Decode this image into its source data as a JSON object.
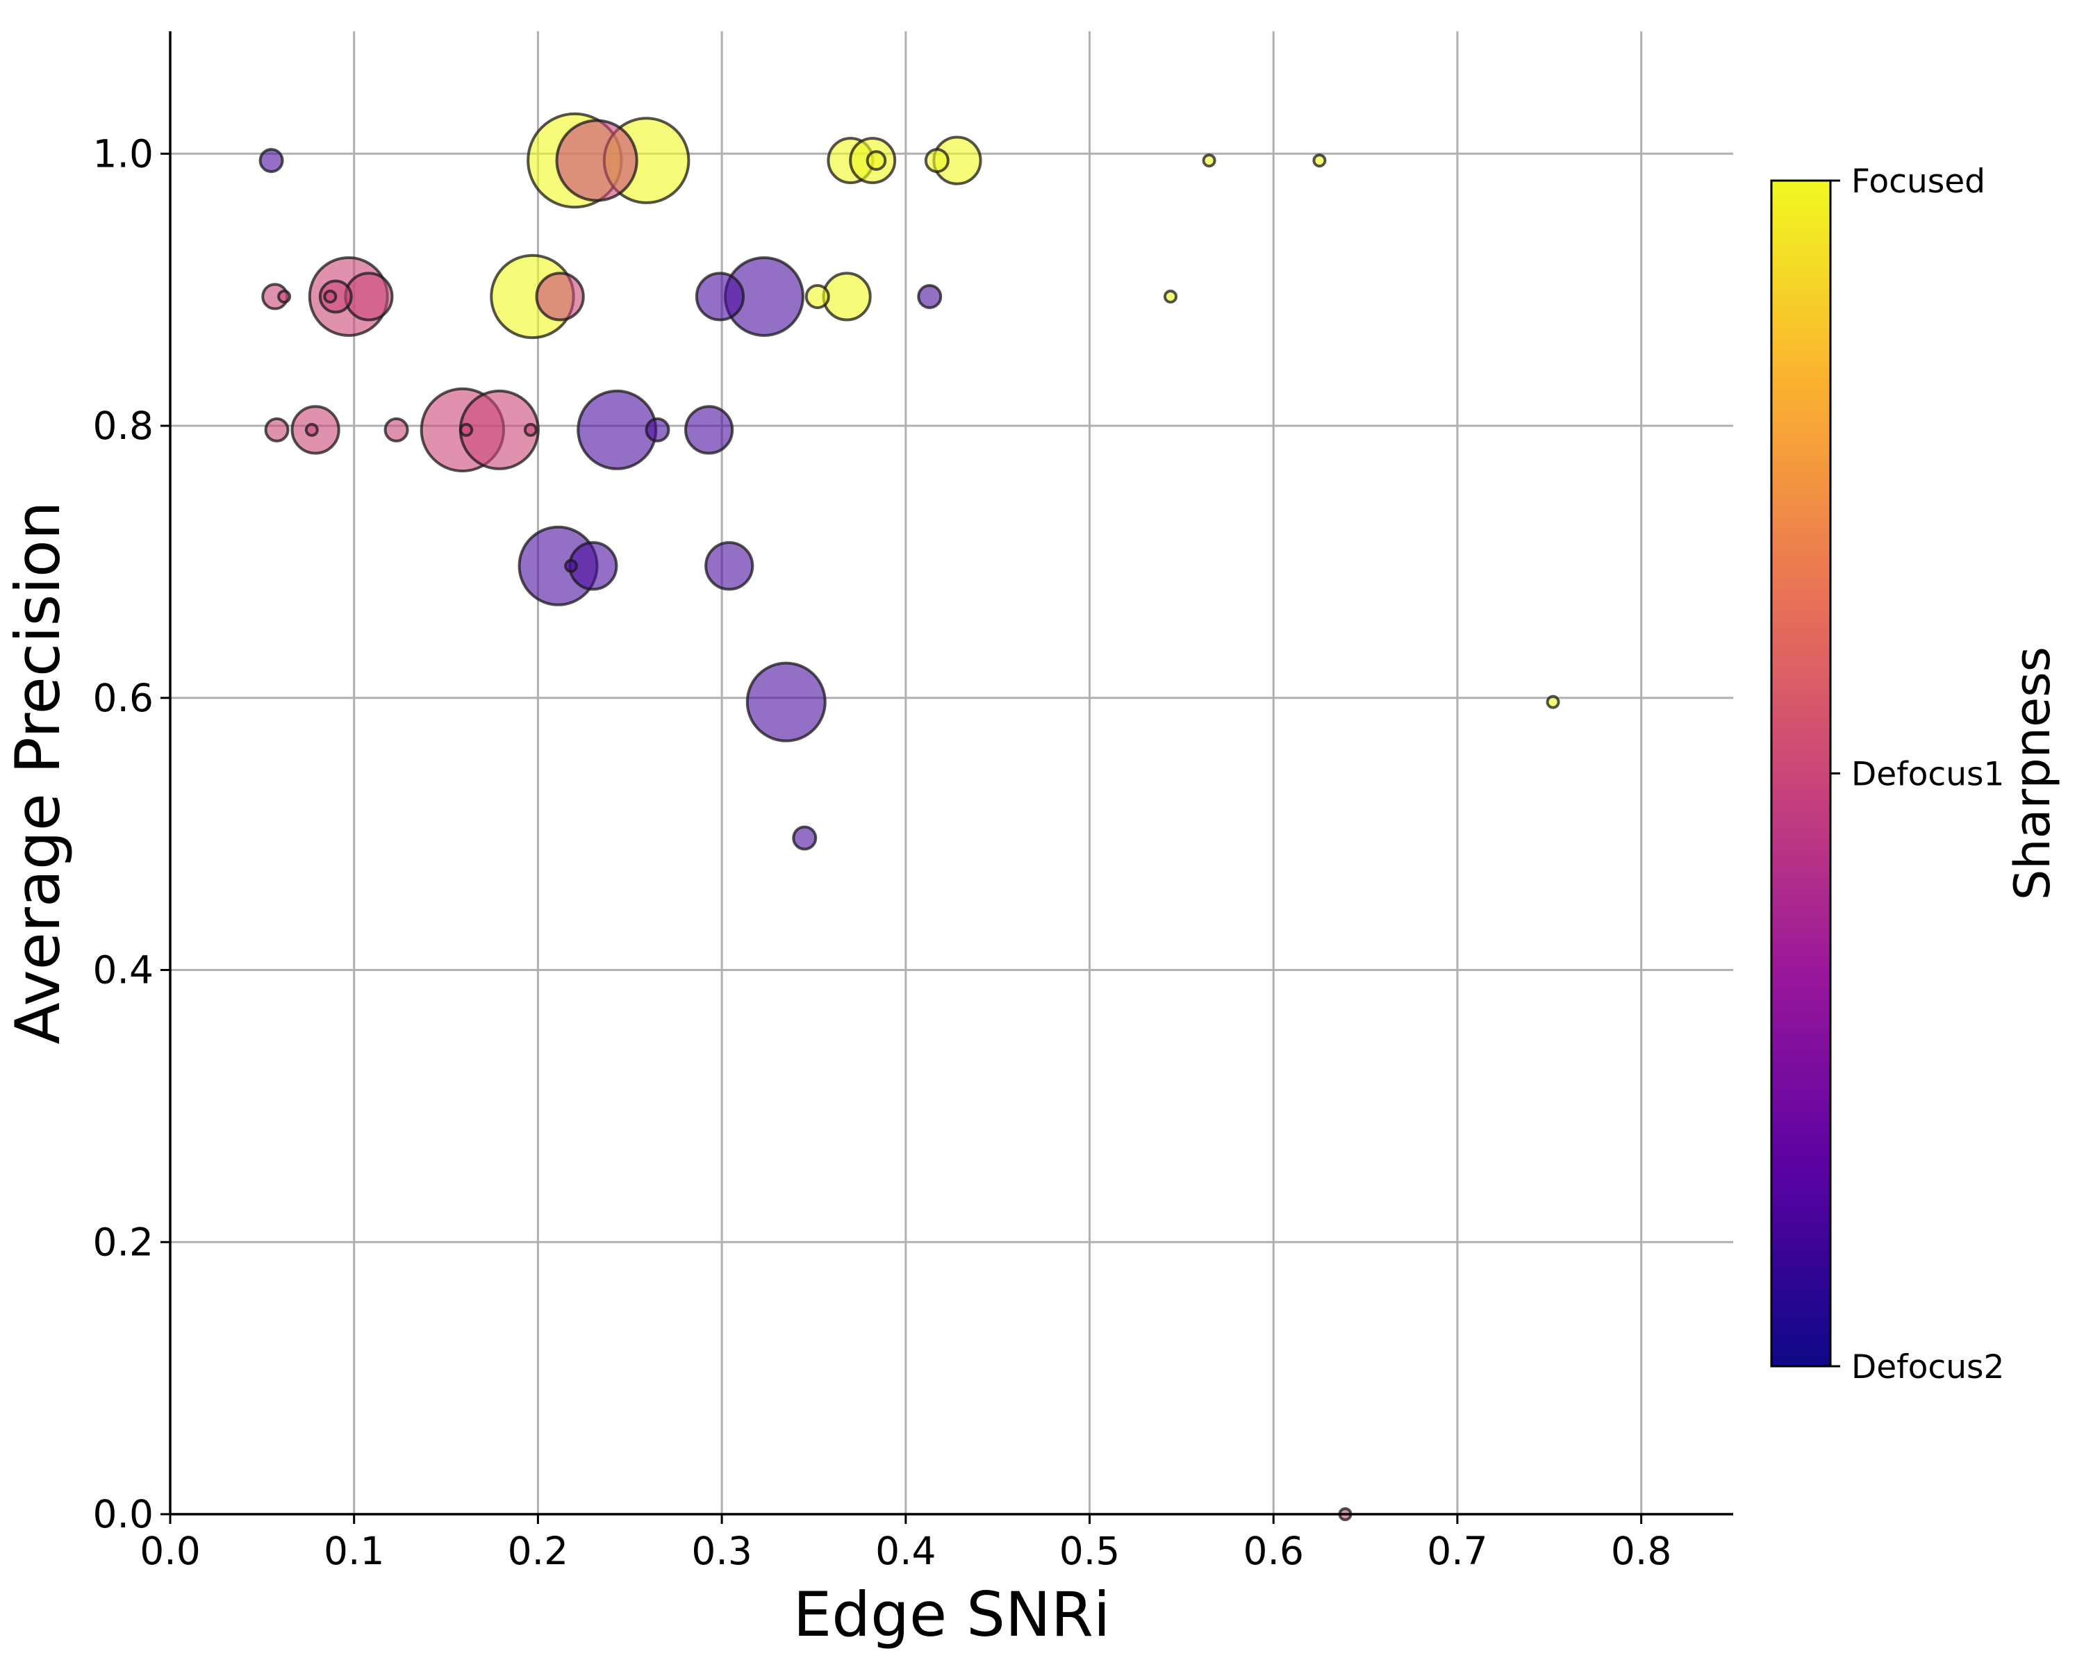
{
  "chart_data": {
    "type": "scatter",
    "xlabel": "Edge SNRi",
    "ylabel": "Average Precision",
    "xlim": [
      0.0,
      0.85
    ],
    "ylim": [
      0.0,
      1.09
    ],
    "x_ticks": [
      "0.0",
      "0.1",
      "0.2",
      "0.3",
      "0.4",
      "0.5",
      "0.6",
      "0.7",
      "0.8"
    ],
    "y_ticks": [
      "0.0",
      "0.2",
      "0.4",
      "0.6",
      "0.8",
      "1.0"
    ],
    "grid": true,
    "marker_alpha": 0.6,
    "colormap": "plasma",
    "colorbar": {
      "title": "Sharpness",
      "tick_labels": [
        "Defocus2",
        "Defocus1",
        "Focused"
      ],
      "stops": [
        "#0d0887",
        "#5b02a3",
        "#9a179b",
        "#cb4678",
        "#eb7852",
        "#fbb32f",
        "#f0f921"
      ]
    },
    "categories": {
      "Focused": {
        "color": "#f0f921"
      },
      "Defocus1": {
        "color": "#cc4778"
      },
      "Defocus2": {
        "color": "#4b0fa0"
      }
    },
    "series": [
      {
        "category": "Focused",
        "points": [
          {
            "x": 0.22,
            "y": 0.995,
            "s": 42
          },
          {
            "x": 0.259,
            "y": 0.995,
            "s": 38
          },
          {
            "x": 0.197,
            "y": 0.895,
            "s": 37
          },
          {
            "x": 0.37,
            "y": 0.995,
            "s": 20
          },
          {
            "x": 0.382,
            "y": 0.995,
            "s": 20
          },
          {
            "x": 0.428,
            "y": 0.995,
            "s": 21
          },
          {
            "x": 0.368,
            "y": 0.895,
            "s": 21
          },
          {
            "x": 0.352,
            "y": 0.895,
            "s": 10
          },
          {
            "x": 0.417,
            "y": 0.995,
            "s": 10
          },
          {
            "x": 0.384,
            "y": 0.995,
            "s": 8
          },
          {
            "x": 0.544,
            "y": 0.895,
            "s": 5
          },
          {
            "x": 0.565,
            "y": 0.995,
            "s": 5
          },
          {
            "x": 0.625,
            "y": 0.995,
            "s": 5
          },
          {
            "x": 0.752,
            "y": 0.597,
            "s": 5
          }
        ]
      },
      {
        "category": "Defocus1",
        "points": [
          {
            "x": 0.097,
            "y": 0.895,
            "s": 35
          },
          {
            "x": 0.108,
            "y": 0.895,
            "s": 21
          },
          {
            "x": 0.09,
            "y": 0.895,
            "s": 14
          },
          {
            "x": 0.057,
            "y": 0.895,
            "s": 11
          },
          {
            "x": 0.062,
            "y": 0.895,
            "s": 5
          },
          {
            "x": 0.087,
            "y": 0.895,
            "s": 5
          },
          {
            "x": 0.159,
            "y": 0.797,
            "s": 37
          },
          {
            "x": 0.179,
            "y": 0.797,
            "s": 35
          },
          {
            "x": 0.079,
            "y": 0.797,
            "s": 21
          },
          {
            "x": 0.058,
            "y": 0.797,
            "s": 10
          },
          {
            "x": 0.123,
            "y": 0.797,
            "s": 10
          },
          {
            "x": 0.077,
            "y": 0.797,
            "s": 5
          },
          {
            "x": 0.161,
            "y": 0.797,
            "s": 5
          },
          {
            "x": 0.196,
            "y": 0.797,
            "s": 5
          },
          {
            "x": 0.232,
            "y": 0.995,
            "s": 36
          },
          {
            "x": 0.212,
            "y": 0.895,
            "s": 21
          },
          {
            "x": 0.639,
            "y": 0.0,
            "s": 5
          }
        ]
      },
      {
        "category": "Defocus2",
        "points": [
          {
            "x": 0.323,
            "y": 0.895,
            "s": 35
          },
          {
            "x": 0.299,
            "y": 0.895,
            "s": 21
          },
          {
            "x": 0.413,
            "y": 0.895,
            "s": 10
          },
          {
            "x": 0.243,
            "y": 0.797,
            "s": 35
          },
          {
            "x": 0.293,
            "y": 0.797,
            "s": 21
          },
          {
            "x": 0.265,
            "y": 0.797,
            "s": 10
          },
          {
            "x": 0.211,
            "y": 0.697,
            "s": 35
          },
          {
            "x": 0.23,
            "y": 0.697,
            "s": 21
          },
          {
            "x": 0.218,
            "y": 0.697,
            "s": 5
          },
          {
            "x": 0.304,
            "y": 0.697,
            "s": 21
          },
          {
            "x": 0.335,
            "y": 0.597,
            "s": 35
          },
          {
            "x": 0.345,
            "y": 0.497,
            "s": 10
          },
          {
            "x": 0.055,
            "y": 0.995,
            "s": 10
          }
        ]
      }
    ]
  }
}
